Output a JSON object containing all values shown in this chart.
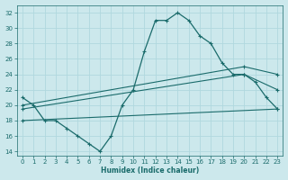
{
  "xlabel": "Humidex (Indice chaleur)",
  "background_color": "#cce8ec",
  "grid_color": "#b0d8de",
  "line_color": "#1a6b6b",
  "xlim": [
    -0.5,
    23.5
  ],
  "ylim": [
    13.5,
    33
  ],
  "yticks": [
    14,
    16,
    18,
    20,
    22,
    24,
    26,
    28,
    30,
    32
  ],
  "xticks": [
    0,
    1,
    2,
    3,
    4,
    5,
    6,
    7,
    8,
    9,
    10,
    11,
    12,
    13,
    14,
    15,
    16,
    17,
    18,
    19,
    20,
    21,
    22,
    23
  ],
  "lines": [
    {
      "x": [
        0,
        1,
        2,
        3,
        4,
        5,
        6,
        7,
        8,
        9,
        10,
        11,
        12,
        13,
        14,
        15,
        16,
        17,
        18,
        19,
        20,
        21,
        22,
        23
      ],
      "y": [
        21,
        20,
        18,
        18,
        17,
        16,
        15,
        14,
        16,
        20,
        22,
        27,
        31,
        31,
        32,
        31,
        29,
        28,
        25.5,
        24,
        24,
        23,
        21,
        19.5
      ]
    },
    {
      "x": [
        0,
        20,
        23
      ],
      "y": [
        20,
        25,
        24
      ]
    },
    {
      "x": [
        0,
        20,
        23
      ],
      "y": [
        19.5,
        24,
        22
      ]
    },
    {
      "x": [
        0,
        23
      ],
      "y": [
        18,
        19.5
      ]
    }
  ]
}
